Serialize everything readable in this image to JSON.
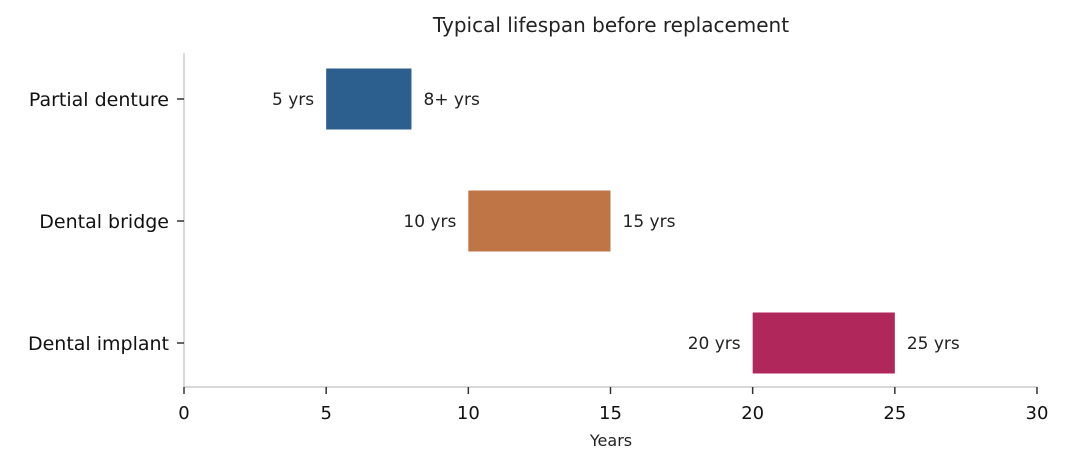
{
  "chart_data": {
    "type": "bar",
    "orientation": "horizontal-range",
    "title": "Typical lifespan before replacement",
    "xlabel": "Years",
    "ylabel": "",
    "xlim": [
      0,
      30
    ],
    "xticks": [
      0,
      5,
      10,
      15,
      20,
      25,
      30
    ],
    "grid": false,
    "categories": [
      "Partial denture",
      "Dental bridge",
      "Dental implant"
    ],
    "ranges": [
      {
        "category": "Partial denture",
        "start": 5,
        "end": 8,
        "start_label": "5 yrs",
        "end_label": "8+ yrs",
        "color": "#2d5f8e"
      },
      {
        "category": "Dental bridge",
        "start": 10,
        "end": 15,
        "start_label": "10 yrs",
        "end_label": "15 yrs",
        "color": "#bf7545"
      },
      {
        "category": "Dental implant",
        "start": 20,
        "end": 25,
        "start_label": "20 yrs",
        "end_label": "25 yrs",
        "color": "#b0285b"
      }
    ]
  }
}
